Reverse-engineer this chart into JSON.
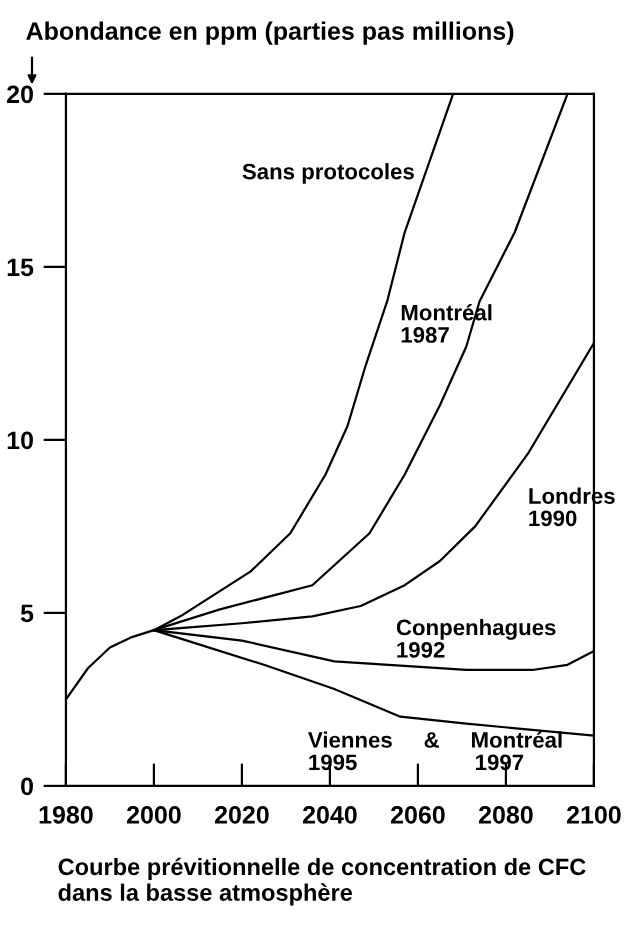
{
  "chart_data": {
    "type": "line",
    "ylabel": "Abondance en ppm (parties pas millions)",
    "annotations": [
      "Courbe prévitionnelle de concentration de CFC dans la basse atmosphère"
    ],
    "xlim": [
      1980,
      2100
    ],
    "xticks": [
      1980,
      2000,
      2020,
      2040,
      2060,
      2080,
      2100
    ],
    "ylim": [
      0,
      20
    ],
    "yticks": [
      0,
      5,
      10,
      15,
      20
    ],
    "grid": false,
    "legend": false,
    "marker": "none",
    "line_style": "solid",
    "series": [
      {
        "name": "Sans protocoles",
        "color": "#000000",
        "x": [
          1980,
          1985,
          1990,
          1995,
          2000,
          2006,
          2022,
          2031,
          2039,
          2044,
          2048,
          2053,
          2057,
          2068
        ],
        "values": [
          2.5,
          3.4,
          4.0,
          4.3,
          4.5,
          4.9,
          6.2,
          7.3,
          9.0,
          10.4,
          12.1,
          14.0,
          16.0,
          20.0
        ]
      },
      {
        "name": "Montréal\n1987",
        "color": "#000000",
        "x": [
          2000,
          2015,
          2036,
          2049,
          2057,
          2065,
          2071,
          2074,
          2082,
          2094
        ],
        "values": [
          4.5,
          5.1,
          5.8,
          7.3,
          9.0,
          11.0,
          12.7,
          14.0,
          16.0,
          20.0
        ]
      },
      {
        "name": "Londres\n1990",
        "color": "#000000",
        "x": [
          2000,
          2020,
          2036,
          2047,
          2057,
          2065,
          2073,
          2085,
          2100
        ],
        "values": [
          4.5,
          4.7,
          4.9,
          5.2,
          5.8,
          6.5,
          7.5,
          9.6,
          12.8
        ]
      },
      {
        "name": "Conpenhagues\n1992",
        "color": "#000000",
        "x": [
          2000,
          2020,
          2041,
          2071,
          2086,
          2094,
          2100
        ],
        "values": [
          4.5,
          4.2,
          3.6,
          3.35,
          3.35,
          3.5,
          3.9
        ]
      },
      {
        "name": "Viennes     &     Montréal\n1995                   1997",
        "color": "#000000",
        "x": [
          2000,
          2025,
          2041,
          2056,
          2071,
          2100
        ],
        "values": [
          4.5,
          3.5,
          2.8,
          2.0,
          1.8,
          1.45
        ]
      }
    ]
  }
}
